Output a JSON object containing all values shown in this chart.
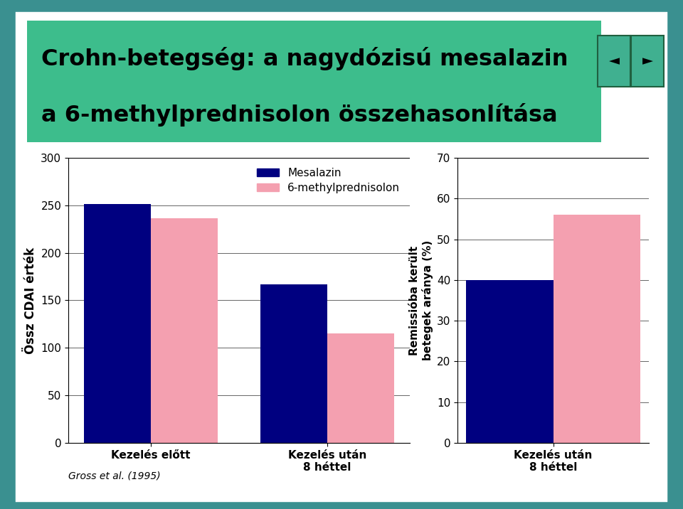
{
  "title_line1": "Crohn-betegség: a nagydózisú mesalazin",
  "title_line2": "a 6-methylprednisolon összehasonlítása",
  "title_bg_color": "#3DBD8C",
  "outer_bg_color": "#3A9090",
  "inner_bg_color": "#ffffff",
  "plot_bg_color": "#ffffff",
  "left_chart": {
    "groups": [
      "Kezelés előtt",
      "Kezelés után\n8 héttel"
    ],
    "mesalazin_values": [
      251,
      167
    ],
    "methylpred_values": [
      236,
      115
    ],
    "ylabel": "Össz CDAI érték",
    "ylim": [
      0,
      300
    ],
    "yticks": [
      0,
      50,
      100,
      150,
      200,
      250,
      300
    ]
  },
  "right_chart": {
    "groups": [
      "Kezelés után\n8 héttel"
    ],
    "mesalazin_values": [
      40
    ],
    "methylpred_values": [
      56
    ],
    "ylabel": "Remissióba került\nbetegek aránya (%)",
    "ylim": [
      0,
      70
    ],
    "yticks": [
      0,
      10,
      20,
      30,
      40,
      50,
      60,
      70
    ]
  },
  "legend_labels": [
    "Mesalazin",
    "6-methylprednisolon"
  ],
  "bar_color_mesalazin": "#000080",
  "bar_color_methylpred": "#F4A0B0",
  "bar_width": 0.38,
  "footnote": "Gross et al. (1995)"
}
